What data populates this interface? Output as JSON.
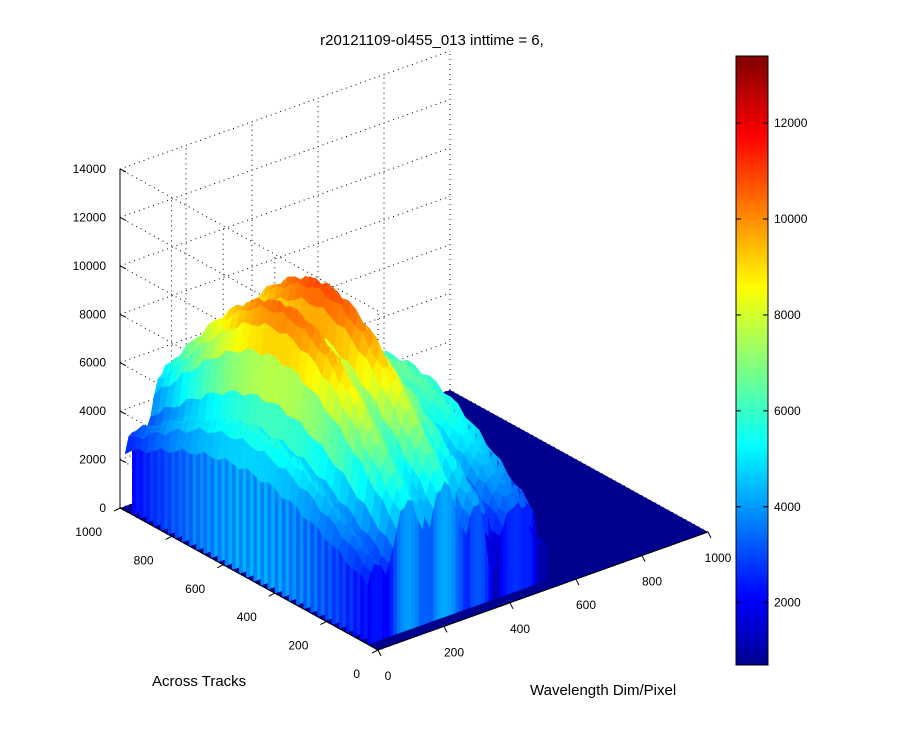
{
  "chart_data": {
    "type": "surface",
    "title": "r20121109-ol455_013 inttime = 6,",
    "xlabel": "Wavelength Dim/Pixel",
    "ylabel": "Across Tracks",
    "zlabel": "",
    "x_ticks": [
      "0",
      "200",
      "400",
      "600",
      "800",
      "1000"
    ],
    "y_ticks": [
      "0",
      "200",
      "400",
      "600",
      "800",
      "1000"
    ],
    "z_ticks": [
      "0",
      "2000",
      "4000",
      "6000",
      "8000",
      "10000",
      "12000",
      "14000"
    ],
    "xlim": [
      0,
      1000
    ],
    "ylim": [
      0,
      1000
    ],
    "zlim": [
      0,
      14000
    ],
    "colormap": "jet",
    "colorbar": {
      "range": [
        700,
        13400
      ],
      "ticks": [
        "2000",
        "4000",
        "6000",
        "8000",
        "10000",
        "12000"
      ]
    },
    "grid": true,
    "series_description": "Detector counts over wavelength pixel (x) and across-track position (y); ridges of emission arcs peaking near 11000"
  },
  "colors": {
    "background": "#ffffff",
    "floor": "#00008f"
  }
}
